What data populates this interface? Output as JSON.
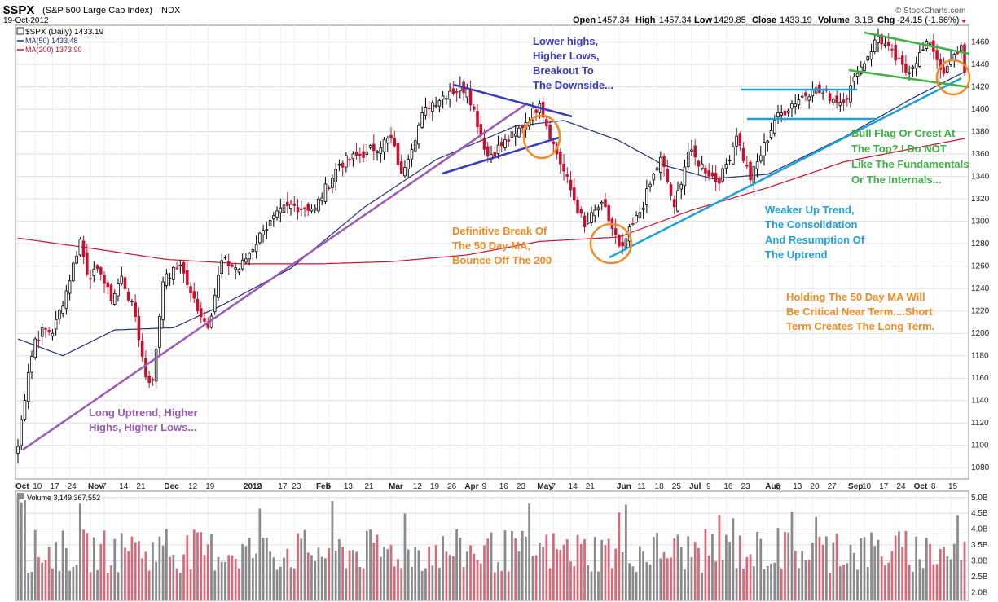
{
  "header": {
    "symbol": "$SPX",
    "name": "(S&P 500 Large Cap Index)",
    "exchange": "INDX",
    "date": "19-Oct-2012",
    "open_label": "Open",
    "open": "1457.34",
    "high_label": "High",
    "high": "1457.34",
    "low_label": "Low",
    "low": "1429.85",
    "close_label": "Close",
    "close": "1433.19",
    "volume_label": "Volume",
    "volume": "3.1B",
    "chg_label": "Chg",
    "chg": "-24.15 (-1.66%)",
    "watermark": "© StockCharts.com"
  },
  "legend": {
    "price": "$SPX (Daily) 1433.19",
    "ma50": "MA(50) 1433.48",
    "ma200": "MA(200) 1373.90",
    "volume": "Volume 3,149,367,552"
  },
  "colors": {
    "up": "#ffffff",
    "down": "#c8102e",
    "wick": "#000000",
    "ma50": "#1f2f7a",
    "ma200": "#c8102e",
    "vol_up": "#8a8a8a",
    "vol_down": "#d46a7a",
    "purple": "#9b59b6",
    "navy": "#3b3bbf",
    "cyan": "#1fa0d8",
    "green": "#3cb043",
    "orange": "#f08a24"
  },
  "annotations": {
    "long_uptrend": [
      "Long Uptrend, Higher",
      "Highs, Higher Lows..."
    ],
    "lower_highs": [
      "Lower highs,",
      "Higher Lows,",
      "Breakout  To",
      "The Downside..."
    ],
    "definitive_break": [
      "Definitive Break Of",
      "The 50 Day MA,",
      "Bounce Off The 200"
    ],
    "weaker_uptrend": [
      "Weaker Up Trend,",
      "The Consolidation",
      "And Resumption Of",
      "The Uptrend"
    ],
    "bull_flag": [
      "Bull Flag Or Crest At",
      "The Top? I Do NOT",
      "Like The Fundamentals",
      "Or The Internals..."
    ],
    "holding": [
      "Holding The 50 Day MA  Will",
      "Be Critical Near Term....Short",
      "Term Creates The Long Term."
    ]
  },
  "chart_data": [
    {
      "type": "candlestick",
      "title": "$SPX (S&P 500 Large Cap Index) INDX",
      "xlabel": "",
      "ylabel": "",
      "ylim": [
        1070,
        1475
      ],
      "y_ticks": [
        1080,
        1100,
        1120,
        1140,
        1160,
        1180,
        1200,
        1220,
        1240,
        1260,
        1280,
        1300,
        1320,
        1340,
        1360,
        1380,
        1400,
        1420,
        1440,
        1460
      ],
      "x_tick_labels": [
        "Oct",
        "10",
        "17",
        "24",
        "Nov",
        "7",
        "14",
        "21",
        "Dec",
        "12",
        "19",
        "2012",
        "9",
        "17",
        "23",
        "Feb",
        "6",
        "13",
        "21",
        "Mar",
        "12",
        "19",
        "26",
        "Apr",
        "9",
        "16",
        "23",
        "May",
        "7",
        "14",
        "21",
        "Jun",
        "11",
        "18",
        "25",
        "Jul",
        "9",
        "16",
        "23",
        "Aug",
        "6",
        "13",
        "20",
        "27",
        "Sep",
        "10",
        "17",
        "24",
        "Oct",
        "8",
        "15"
      ],
      "x_tick_labels_bold": [
        "Oct",
        "Nov",
        "Dec",
        "2012",
        "Feb",
        "Mar",
        "Apr",
        "May",
        "Jun",
        "Jul",
        "Aug",
        "Sep"
      ],
      "period": [
        "2011-10-03",
        "2012-10-19"
      ],
      "close_anchors": [
        [
          "2011-10-03",
          1099
        ],
        [
          "2011-10-04",
          1123
        ],
        [
          "2011-10-06",
          1165
        ],
        [
          "2011-10-10",
          1195
        ],
        [
          "2011-10-13",
          1204
        ],
        [
          "2011-10-17",
          1200
        ],
        [
          "2011-10-21",
          1238
        ],
        [
          "2011-10-27",
          1284
        ],
        [
          "2011-10-31",
          1253
        ],
        [
          "2011-11-04",
          1253
        ],
        [
          "2011-11-09",
          1229
        ],
        [
          "2011-11-14",
          1251
        ],
        [
          "2011-11-18",
          1215
        ],
        [
          "2011-11-23",
          1161
        ],
        [
          "2011-11-25",
          1158
        ],
        [
          "2011-11-30",
          1246
        ],
        [
          "2011-12-07",
          1261
        ],
        [
          "2011-12-12",
          1236
        ],
        [
          "2011-12-19",
          1205
        ],
        [
          "2011-12-23",
          1265
        ],
        [
          "2011-12-30",
          1257
        ],
        [
          "2012-01-10",
          1292
        ],
        [
          "2012-01-19",
          1314
        ],
        [
          "2012-01-31",
          1312
        ],
        [
          "2012-02-09",
          1351
        ],
        [
          "2012-02-21",
          1362
        ],
        [
          "2012-03-01",
          1374
        ],
        [
          "2012-03-06",
          1343
        ],
        [
          "2012-03-15",
          1402
        ],
        [
          "2012-03-26",
          1416
        ],
        [
          "2012-04-02",
          1419
        ],
        [
          "2012-04-10",
          1358
        ],
        [
          "2012-04-20",
          1378
        ],
        [
          "2012-05-01",
          1405
        ],
        [
          "2012-05-07",
          1369
        ],
        [
          "2012-05-18",
          1295
        ],
        [
          "2012-05-25",
          1317
        ],
        [
          "2012-06-01",
          1278
        ],
        [
          "2012-06-04",
          1278
        ],
        [
          "2012-06-11",
          1308
        ],
        [
          "2012-06-19",
          1357
        ],
        [
          "2012-06-25",
          1313
        ],
        [
          "2012-06-29",
          1362
        ],
        [
          "2012-07-12",
          1334
        ],
        [
          "2012-07-19",
          1376
        ],
        [
          "2012-07-25",
          1337
        ],
        [
          "2012-08-03",
          1390
        ],
        [
          "2012-08-10",
          1405
        ],
        [
          "2012-08-20",
          1418
        ],
        [
          "2012-08-31",
          1406
        ],
        [
          "2012-09-06",
          1432
        ],
        [
          "2012-09-14",
          1465
        ],
        [
          "2012-09-26",
          1433
        ],
        [
          "2012-10-05",
          1460
        ],
        [
          "2012-10-11",
          1432
        ],
        [
          "2012-10-18",
          1457
        ],
        [
          "2012-10-19",
          1433
        ]
      ],
      "ma50_anchors": [
        [
          "2011-10-03",
          1195
        ],
        [
          "2011-10-20",
          1180
        ],
        [
          "2011-11-10",
          1203
        ],
        [
          "2011-12-05",
          1205
        ],
        [
          "2011-12-23",
          1225
        ],
        [
          "2012-01-20",
          1258
        ],
        [
          "2012-02-20",
          1312
        ],
        [
          "2012-03-20",
          1355
        ],
        [
          "2012-04-20",
          1385
        ],
        [
          "2012-05-10",
          1390
        ],
        [
          "2012-06-01",
          1372
        ],
        [
          "2012-06-20",
          1350
        ],
        [
          "2012-07-10",
          1338
        ],
        [
          "2012-08-01",
          1342
        ],
        [
          "2012-08-31",
          1375
        ],
        [
          "2012-09-28",
          1410
        ],
        [
          "2012-10-19",
          1433.48
        ]
      ],
      "ma200_anchors": [
        [
          "2011-10-03",
          1285
        ],
        [
          "2011-11-01",
          1276
        ],
        [
          "2011-12-01",
          1266
        ],
        [
          "2012-01-01",
          1262
        ],
        [
          "2012-02-01",
          1262
        ],
        [
          "2012-03-01",
          1264
        ],
        [
          "2012-04-01",
          1270
        ],
        [
          "2012-05-01",
          1282
        ],
        [
          "2012-06-01",
          1286
        ],
        [
          "2012-07-01",
          1310
        ],
        [
          "2012-08-01",
          1330
        ],
        [
          "2012-09-01",
          1353
        ],
        [
          "2012-10-19",
          1373.9
        ]
      ]
    },
    {
      "type": "bar",
      "title": "Volume 3,149,367,552",
      "y_ticks_labels": [
        "2.0B",
        "2.5B",
        "3.0B",
        "3.5B",
        "4.0B",
        "4.5B",
        "5.0B"
      ],
      "y_ticks": [
        2.0,
        2.5,
        3.0,
        3.5,
        4.0,
        4.5,
        5.0
      ],
      "ylim": [
        1.75,
        5.2
      ],
      "unit": "B shares"
    }
  ]
}
